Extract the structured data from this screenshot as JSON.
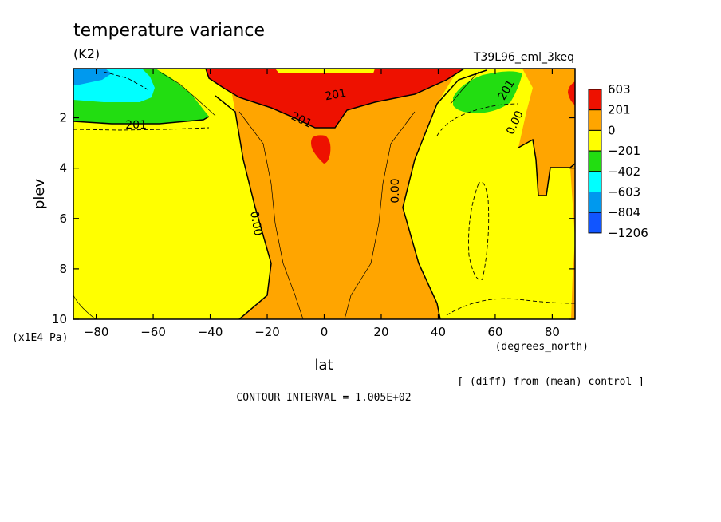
{
  "chart_data": {
    "type": "contour",
    "title": "temperature variance",
    "units": "(K2)",
    "run_label": "T39L96_eml_3keq",
    "xlabel": "lat",
    "x_units": "(degrees_north)",
    "ylabel": "plev",
    "y_units": "(x1E4 Pa)",
    "xlim": [
      -88,
      88
    ],
    "ylim": [
      0.05,
      10
    ],
    "y_inverted": true,
    "x_ticks": [
      -80,
      -60,
      -40,
      -20,
      0,
      20,
      40,
      60,
      80
    ],
    "y_ticks": [
      2,
      4,
      6,
      8,
      10
    ],
    "contour_levels": [
      -1206,
      -804,
      -603,
      -402,
      -201,
      0,
      201,
      603
    ],
    "colorbar": [
      {
        "label": "603",
        "color": "#ee1100"
      },
      {
        "label": "201",
        "color": "#ffa500"
      },
      {
        "label": "0",
        "color": "#ffff00"
      },
      {
        "label": "−201",
        "color": "#22dd11"
      },
      {
        "label": "−402",
        "color": "#00ffff"
      },
      {
        "label": "−603",
        "color": "#0099ee"
      },
      {
        "label": "−804",
        "color": "#1155ff"
      },
      {
        "label": "−1206",
        "color": ""
      }
    ],
    "contour_labels": [
      {
        "text": "201",
        "lat": -66,
        "plev": 2.3,
        "angle": 0
      },
      {
        "text": "201",
        "lat": 4,
        "plev": 1.1,
        "angle": -10
      },
      {
        "text": "201",
        "lat": -8,
        "plev": 2.1,
        "angle": 25
      },
      {
        "text": "201",
        "lat": 64,
        "plev": 0.9,
        "angle": -60
      },
      {
        "text": "0.00",
        "lat": 67,
        "plev": 2.2,
        "angle": -65
      },
      {
        "text": "0.00",
        "lat": -24,
        "plev": 6.2,
        "angle": 80
      },
      {
        "text": "0.00",
        "lat": 25,
        "plev": 4.9,
        "angle": -90
      }
    ],
    "comparison_note": "[ (diff) from (mean) control ]",
    "contour_interval_label": "CONTOUR INTERVAL = 1.005E+02"
  }
}
